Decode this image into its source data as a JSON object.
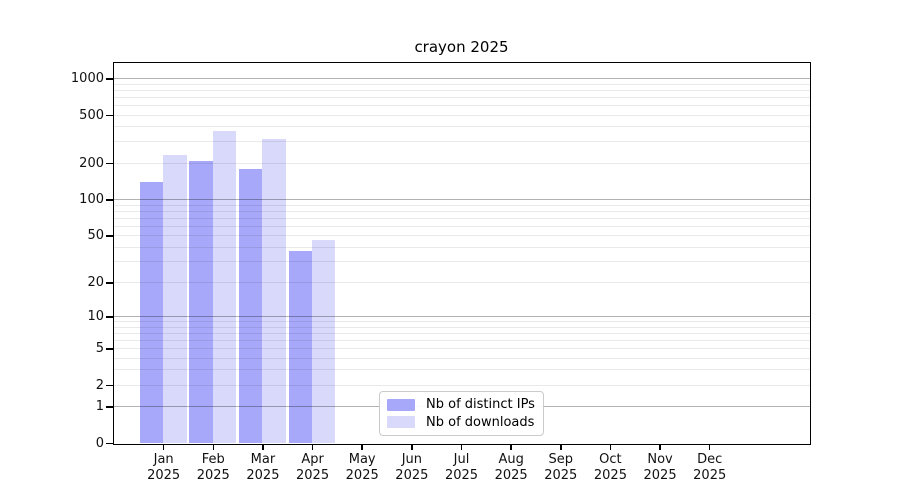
{
  "chart_data": {
    "type": "bar",
    "title": "crayon 2025",
    "x_categories": [
      "Jan",
      "Feb",
      "Mar",
      "Apr",
      "May",
      "Jun",
      "Jul",
      "Aug",
      "Sep",
      "Oct",
      "Nov",
      "Dec"
    ],
    "x_year_suffix": "2025",
    "series": [
      {
        "name": "Nb of distinct IPs",
        "color": "#a8a8fa",
        "values": [
          140,
          210,
          180,
          37,
          0,
          0,
          0,
          0,
          0,
          0,
          0,
          0
        ]
      },
      {
        "name": "Nb of downloads",
        "color": "#d9d9fc",
        "values": [
          235,
          370,
          315,
          46,
          0,
          0,
          0,
          0,
          0,
          0,
          0,
          0
        ]
      }
    ],
    "y_ticks": [
      0,
      1,
      2,
      5,
      10,
      20,
      50,
      100,
      200,
      500,
      1000
    ],
    "y_scale": "log1p",
    "ylim": [
      0,
      1360
    ],
    "grid": {
      "major_values": [
        1,
        10,
        100,
        1000
      ],
      "minor_decades": [
        1,
        10,
        100
      ],
      "major_color": "rgba(0,0,0,0.30)",
      "minor_color": "rgba(0,0,0,0.085)"
    },
    "legend_position": "lower-center"
  }
}
